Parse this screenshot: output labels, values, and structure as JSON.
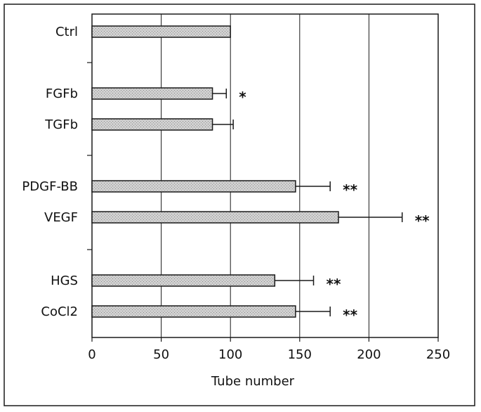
{
  "chart_data": {
    "type": "bar",
    "orientation": "horizontal",
    "title": "",
    "xlabel": "Tube number",
    "ylabel": "",
    "xlim": [
      0,
      250
    ],
    "xticks": [
      "0",
      "50",
      "100",
      "150",
      "200",
      "250"
    ],
    "grid": true,
    "groups": [
      {
        "categories": [
          "Ctrl"
        ]
      },
      {
        "categories": [
          "FGFb",
          "TGFb"
        ]
      },
      {
        "categories": [
          "PDGF-BB",
          "VEGF"
        ]
      },
      {
        "categories": [
          "HGS",
          "CoCl2"
        ]
      }
    ],
    "categories": [
      "Ctrl",
      "FGFb",
      "TGFb",
      "PDGF-BB",
      "VEGF",
      "HGS",
      "CoCl2"
    ],
    "values": [
      100,
      87,
      87,
      147,
      178,
      132,
      147
    ],
    "errors": [
      0,
      10,
      15,
      25,
      46,
      28,
      25
    ],
    "annotations": [
      "",
      "*",
      "",
      "**",
      "**",
      "**",
      "**"
    ],
    "bar_fill": "#d0d0d0",
    "line_color": "#1a1a1a"
  }
}
